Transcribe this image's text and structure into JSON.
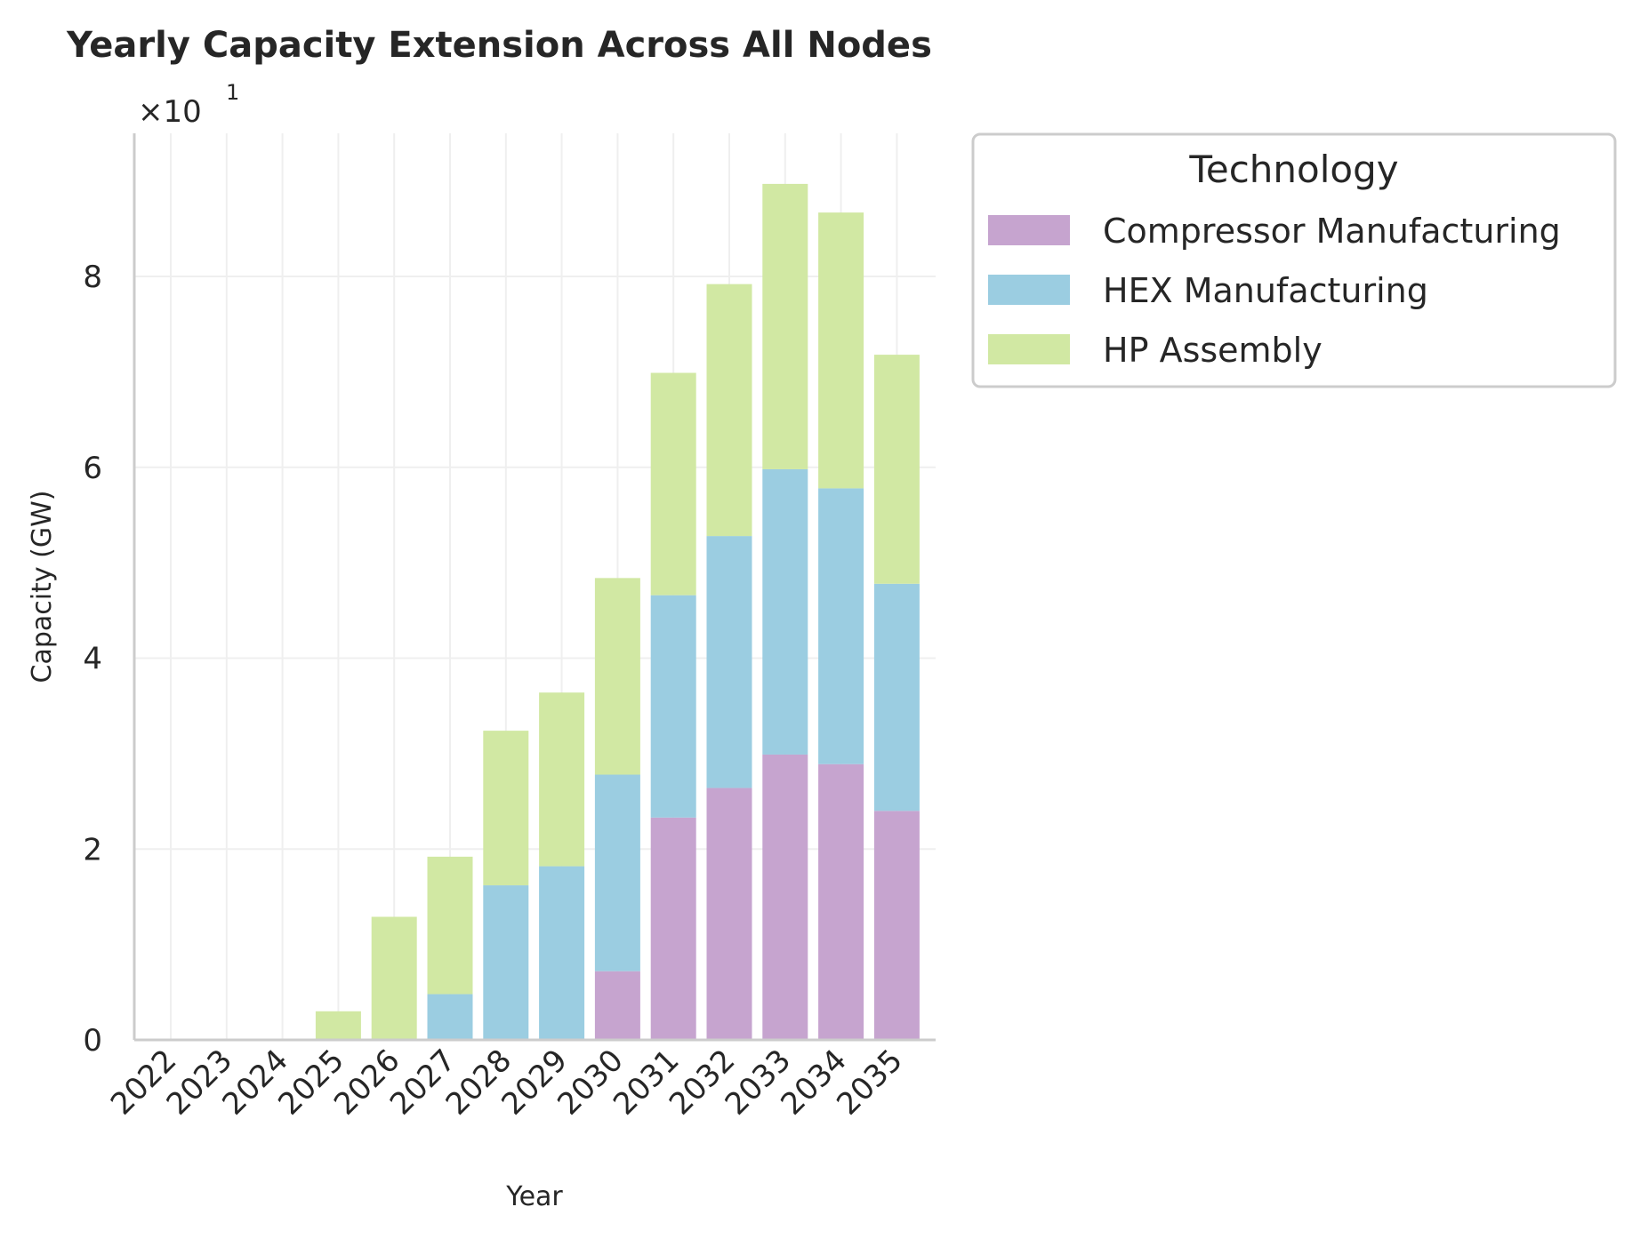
{
  "chart_data": {
    "type": "bar",
    "stacked": true,
    "title": "Yearly Capacity Extension Across All Nodes",
    "xlabel": "Year",
    "ylabel": "Capacity (GW)",
    "y_offset_label": "×10",
    "y_offset_exponent": "1",
    "y_scale_multiplier": 10,
    "ylim": [
      0,
      95
    ],
    "yticks": [
      0,
      2,
      4,
      6,
      8
    ],
    "grid": true,
    "legend_placement": "outside-top-right",
    "legend_title": "Technology",
    "categories": [
      "2022",
      "2023",
      "2024",
      "2025",
      "2026",
      "2027",
      "2028",
      "2029",
      "2030",
      "2031",
      "2032",
      "2033",
      "2034",
      "2035"
    ],
    "series": [
      {
        "name": "Compressor Manufacturing",
        "color": "#c6a4cf",
        "values": [
          0,
          0,
          0,
          0,
          0,
          0,
          0,
          0,
          7.2,
          23.3,
          26.4,
          29.9,
          28.9,
          24.0
        ]
      },
      {
        "name": "HEX Manufacturing",
        "color": "#9bcde1",
        "values": [
          0,
          0,
          0,
          0,
          0,
          4.8,
          16.2,
          18.2,
          20.6,
          23.3,
          26.4,
          29.9,
          28.9,
          23.8
        ]
      },
      {
        "name": "HP Assembly",
        "color": "#d1e8a3",
        "values": [
          0,
          0,
          0,
          3.0,
          12.9,
          14.4,
          16.2,
          18.2,
          20.6,
          23.3,
          26.4,
          29.9,
          28.9,
          24.0
        ]
      }
    ]
  }
}
